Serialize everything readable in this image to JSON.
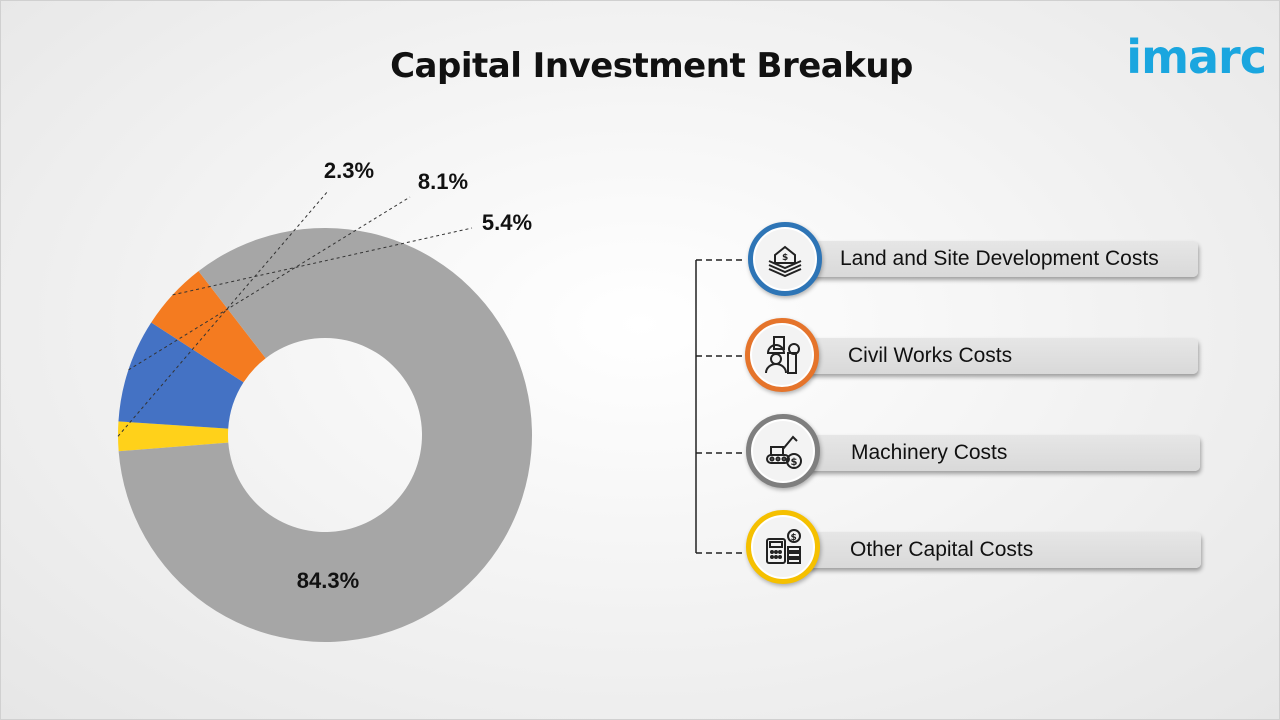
{
  "chart_data": {
    "type": "pie",
    "title": "Capital Investment Breakup",
    "donut": true,
    "slices": [
      {
        "category": "Other Capital Costs",
        "value": 2.3,
        "label": "2.3%",
        "color": "#FFD11A"
      },
      {
        "category": "Land and Site Development Costs",
        "value": 8.1,
        "label": "8.1%",
        "color": "#4472C4"
      },
      {
        "category": "Civil Works Costs",
        "value": 5.4,
        "label": "5.4%",
        "color": "#F47B20"
      },
      {
        "category": "Machinery Costs",
        "value": 84.3,
        "label": "84.3%",
        "color": "#A6A6A6"
      }
    ],
    "legend_position": "right"
  },
  "brand": {
    "logo_text": "imarc",
    "logo_color": "#1AA6DF"
  },
  "legend": {
    "items": [
      {
        "label": "Land and Site Development Costs",
        "icon": "land-house-dollar-icon",
        "ring_color": "#2E75B6"
      },
      {
        "label": "Civil Works Costs",
        "icon": "construction-worker-icon",
        "ring_color": "#E5742B"
      },
      {
        "label": "Machinery Costs",
        "icon": "excavator-dollar-icon",
        "ring_color": "#7F7F7F"
      },
      {
        "label": "Other Capital Costs",
        "icon": "calculator-coins-icon",
        "ring_color": "#F5C000"
      }
    ]
  }
}
